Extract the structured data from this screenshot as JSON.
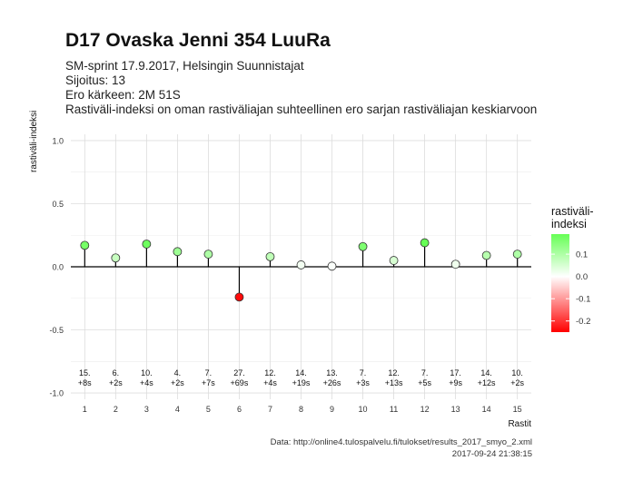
{
  "chart_data": {
    "type": "lollipop",
    "title": "D17 Ovaska Jenni 354 LuuRa",
    "subtitle_lines": [
      "SM-sprint 17.9.2017, Helsingin Suunnistajat",
      "Sijoitus: 13",
      "Ero kärkeen: 2M 51S",
      "Rastiväli-indeksi on oman rastiväliajan suhteellinen ero sarjan rastiväliajan keskiarvoon"
    ],
    "xlabel": "Rastit",
    "ylabel": "rastiväli-indeksi",
    "ylim": [
      -1.05,
      1.05
    ],
    "yticks": [
      -1.0,
      -0.5,
      0.0,
      0.5,
      1.0
    ],
    "ytick_labels": [
      "-1.0",
      "-0.5",
      "0.0",
      "0.5",
      "1.0"
    ],
    "xticks": [
      "1",
      "2",
      "3",
      "4",
      "5",
      "6",
      "7",
      "8",
      "9",
      "10",
      "11",
      "12",
      "13",
      "14",
      "15"
    ],
    "grid": true,
    "points": [
      {
        "x": 1,
        "y": 0.17,
        "rank": "15.",
        "diff": "+8s"
      },
      {
        "x": 2,
        "y": 0.07,
        "rank": "6.",
        "diff": "+2s"
      },
      {
        "x": 3,
        "y": 0.18,
        "rank": "10.",
        "diff": "+4s"
      },
      {
        "x": 4,
        "y": 0.12,
        "rank": "4.",
        "diff": "+2s"
      },
      {
        "x": 5,
        "y": 0.1,
        "rank": "7.",
        "diff": "+7s"
      },
      {
        "x": 6,
        "y": -0.24,
        "rank": "27.",
        "diff": "+69s"
      },
      {
        "x": 7,
        "y": 0.08,
        "rank": "12.",
        "diff": "+4s"
      },
      {
        "x": 8,
        "y": 0.015,
        "rank": "14.",
        "diff": "+19s"
      },
      {
        "x": 9,
        "y": 0.005,
        "rank": "13.",
        "diff": "+26s"
      },
      {
        "x": 10,
        "y": 0.16,
        "rank": "7.",
        "diff": "+3s"
      },
      {
        "x": 11,
        "y": 0.05,
        "rank": "12.",
        "diff": "+13s"
      },
      {
        "x": 12,
        "y": 0.19,
        "rank": "7.",
        "diff": "+5s"
      },
      {
        "x": 13,
        "y": 0.02,
        "rank": "17.",
        "diff": "+9s"
      },
      {
        "x": 14,
        "y": 0.09,
        "rank": "14.",
        "diff": "+12s"
      },
      {
        "x": 15,
        "y": 0.1,
        "rank": "10.",
        "diff": "+2s"
      }
    ],
    "legend": {
      "title": "rastiväli-\nindeksi",
      "position": "right",
      "ticks": [
        0.1,
        0.0,
        -0.1,
        -0.2
      ],
      "tick_labels": [
        "0.1",
        "0.0",
        "-0.1",
        "-0.2"
      ],
      "range": [
        -0.25,
        0.19
      ],
      "colors": {
        "high": "#66ff55",
        "mid": "#ffffff",
        "low": "#ff0000"
      }
    }
  },
  "caption": {
    "source": "Data: http://online4.tulospalvelu.fi/tulokset/results_2017_smyo_2.xml",
    "timestamp": "2017-09-24 21:38:15"
  },
  "colors": {
    "grid": "#dcdcdc",
    "stem": "#000000",
    "marker_border": "#333333"
  }
}
